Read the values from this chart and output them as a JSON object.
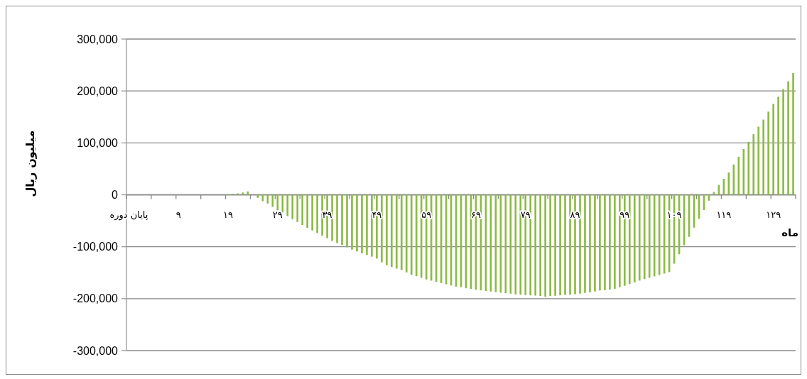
{
  "chart_data": {
    "type": "bar",
    "xlabel": "ماه",
    "ylabel": "میلیون ریال",
    "categories": [
      "پایان دوره",
      null,
      null,
      null,
      null,
      null,
      null,
      null,
      null,
      null,
      "۹",
      null,
      null,
      null,
      null,
      null,
      null,
      null,
      null,
      null,
      "۱۹",
      null,
      null,
      null,
      null,
      null,
      null,
      null,
      null,
      null,
      "۲۹",
      null,
      null,
      null,
      null,
      null,
      null,
      null,
      null,
      null,
      "۳۹",
      null,
      null,
      null,
      null,
      null,
      null,
      null,
      null,
      null,
      "۴۹",
      null,
      null,
      null,
      null,
      null,
      null,
      null,
      null,
      null,
      "۵۹",
      null,
      null,
      null,
      null,
      null,
      null,
      null,
      null,
      null,
      "۶۹",
      null,
      null,
      null,
      null,
      null,
      null,
      null,
      null,
      null,
      "۷۹",
      null,
      null,
      null,
      null,
      null,
      null,
      null,
      null,
      null,
      "۸۹",
      null,
      null,
      null,
      null,
      null,
      null,
      null,
      null,
      null,
      "۹۹",
      null,
      null,
      null,
      null,
      null,
      null,
      null,
      null,
      null,
      "۱۰۹",
      null,
      null,
      null,
      null,
      null,
      null,
      null,
      null,
      null,
      "۱۱۹",
      null,
      null,
      null,
      null,
      null,
      null,
      null,
      null,
      null,
      "۱۲۹",
      null,
      null,
      null,
      null
    ],
    "values": [
      0,
      0,
      0,
      0,
      0,
      0,
      0,
      0,
      0,
      0,
      0,
      0,
      0,
      0,
      0,
      0,
      0,
      0,
      0,
      0,
      1000,
      1800,
      2700,
      4500,
      6400,
      0,
      -5900,
      -12300,
      -16800,
      -23200,
      -29500,
      -34100,
      -40900,
      -46800,
      -52300,
      -58200,
      -63600,
      -68600,
      -73600,
      -78600,
      -83600,
      -88600,
      -92700,
      -96800,
      -100900,
      -105500,
      -109000,
      -112700,
      -115900,
      -119100,
      -122700,
      -130000,
      -135700,
      -138900,
      -142100,
      -144800,
      -149400,
      -153900,
      -156600,
      -159800,
      -163000,
      -165300,
      -167600,
      -169900,
      -172100,
      -174400,
      -176700,
      -177600,
      -179900,
      -181200,
      -182600,
      -184000,
      -185300,
      -186200,
      -187200,
      -188500,
      -189400,
      -190300,
      -191700,
      -192200,
      -193100,
      -193500,
      -194000,
      -194900,
      -196000,
      -194900,
      -194500,
      -193500,
      -192700,
      -192200,
      -191300,
      -190300,
      -188900,
      -187600,
      -186000,
      -184200,
      -183800,
      -182400,
      -181000,
      -177800,
      -175100,
      -171900,
      -168800,
      -165200,
      -162400,
      -159700,
      -157000,
      -154300,
      -151600,
      -148900,
      -132600,
      -114500,
      -97300,
      -81000,
      -63300,
      -46200,
      -29400,
      -11300,
      5400,
      19000,
      30800,
      43000,
      58400,
      73300,
      88200,
      101800,
      116700,
      131200,
      144800,
      160200,
      175100,
      188700,
      203600,
      218600,
      234400
    ],
    "color": "#8cba45",
    "ylim": [
      -300000,
      300000
    ],
    "yticks": [
      {
        "value": -300000,
        "label": "-300,000"
      },
      {
        "value": -200000,
        "label": "-200,000"
      },
      {
        "value": -100000,
        "label": "-100,000"
      },
      0,
      {
        "value": 100000,
        "label": "100,000"
      },
      {
        "value": 200000,
        "label": "200,000"
      },
      {
        "value": 300000,
        "label": "300,000"
      }
    ],
    "grid": "y"
  }
}
